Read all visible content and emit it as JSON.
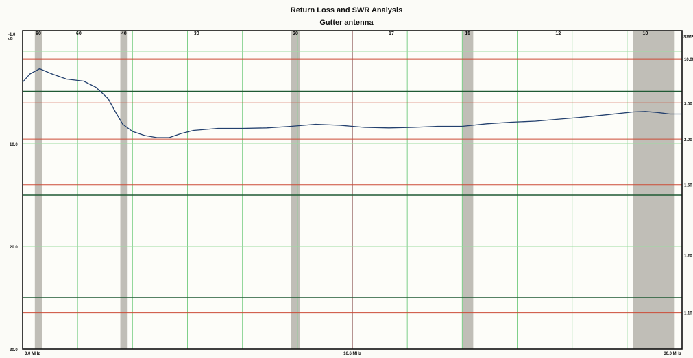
{
  "chart_data": {
    "type": "line",
    "title": "Return Loss and SWR Analysis",
    "subtitle": "Gutter antenna",
    "x_range_mhz": [
      3.0,
      30.0
    ],
    "x_tick_labels": [
      "3.0 MHz",
      "16.6 MHz",
      "30.0 MHz"
    ],
    "y_axis_left": {
      "unit_label": "-1.0\ndB",
      "range_db": [
        -1.0,
        30.0
      ],
      "tick_values": [
        10.0,
        20.0,
        30.0
      ],
      "tick_labels": [
        "10.0",
        "20.0",
        "30.0"
      ]
    },
    "y_axis_right": {
      "title": "SWR",
      "tick_labels": [
        "10.00",
        "3.00",
        "2.00",
        "1.50",
        "1.20",
        "1.10"
      ],
      "tick_db": [
        1.74,
        6.02,
        9.54,
        13.98,
        20.83,
        26.44
      ]
    },
    "bands": [
      {
        "label": "80",
        "from": 3.5,
        "to": 3.8,
        "label_at": 3.65
      },
      {
        "label": "60",
        "label_at": 5.3
      },
      {
        "label": "40",
        "from": 7.0,
        "to": 7.3,
        "label_at": 7.15
      },
      {
        "label": "30",
        "label_at": 10.125
      },
      {
        "label": "20",
        "from": 14.0,
        "to": 14.35,
        "label_at": 14.175
      },
      {
        "label": "17",
        "label_at": 18.1
      },
      {
        "label": "15",
        "from": 21.0,
        "to": 21.45,
        "label_at": 21.225
      },
      {
        "label": "12",
        "label_at": 24.93
      },
      {
        "label": "10",
        "from": 28.0,
        "to": 29.7,
        "label_at": 28.5
      }
    ],
    "green_dividers_db": [
      4.9,
      15.0,
      25.0
    ],
    "series": [
      {
        "color": "#23406e",
        "x": [
          3.0,
          3.3,
          3.7,
          4.2,
          4.8,
          5.5,
          6.0,
          6.5,
          6.8,
          7.1,
          7.5,
          8.0,
          8.5,
          9.0,
          9.5,
          10.0,
          11.0,
          12.0,
          13.0,
          14.0,
          15.0,
          16.0,
          17.0,
          18.0,
          19.0,
          20.0,
          21.0,
          22.0,
          23.0,
          24.0,
          25.0,
          26.0,
          27.0,
          28.0,
          28.5,
          29.0,
          29.5,
          30.0
        ],
        "y": [
          4.0,
          3.2,
          2.7,
          3.2,
          3.7,
          3.9,
          4.5,
          5.6,
          6.9,
          8.1,
          8.8,
          9.2,
          9.4,
          9.4,
          9.0,
          8.7,
          8.5,
          8.5,
          8.45,
          8.3,
          8.1,
          8.2,
          8.4,
          8.45,
          8.4,
          8.3,
          8.3,
          8.05,
          7.9,
          7.8,
          7.6,
          7.4,
          7.15,
          6.9,
          6.85,
          6.95,
          7.1,
          7.1
        ]
      }
    ]
  }
}
